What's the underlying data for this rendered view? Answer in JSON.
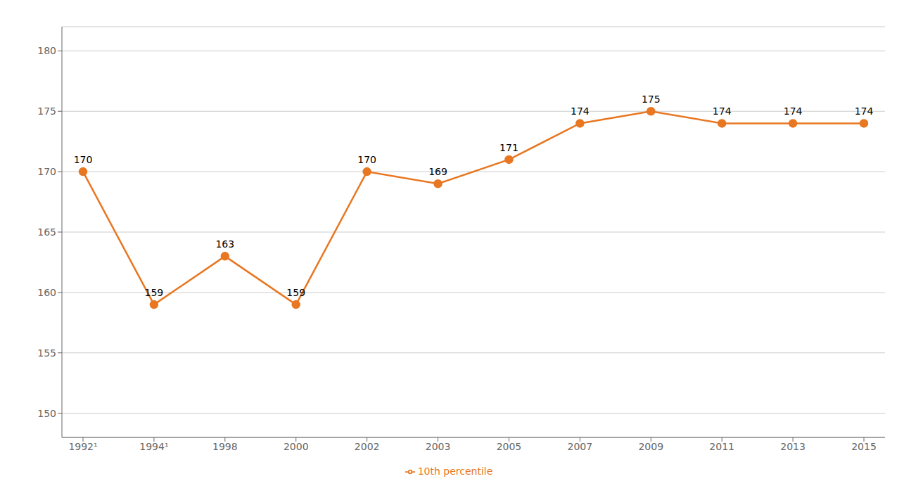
{
  "chart_data": {
    "type": "line",
    "categories": [
      "1992¹",
      "1994¹",
      "1998",
      "2000",
      "2002",
      "2003",
      "2005",
      "2007",
      "2009",
      "2011",
      "2013",
      "2015"
    ],
    "series": [
      {
        "name": "10th percentile",
        "color": "#E87722",
        "values": [
          170,
          159,
          163,
          159,
          170,
          169,
          171,
          174,
          175,
          174,
          174,
          174
        ]
      }
    ],
    "ylim": [
      148,
      182
    ],
    "yticks": [
      150,
      155,
      160,
      165,
      170,
      175,
      180
    ],
    "grid": true,
    "legend": "bottom",
    "data_labels": true,
    "marker": "circle"
  }
}
